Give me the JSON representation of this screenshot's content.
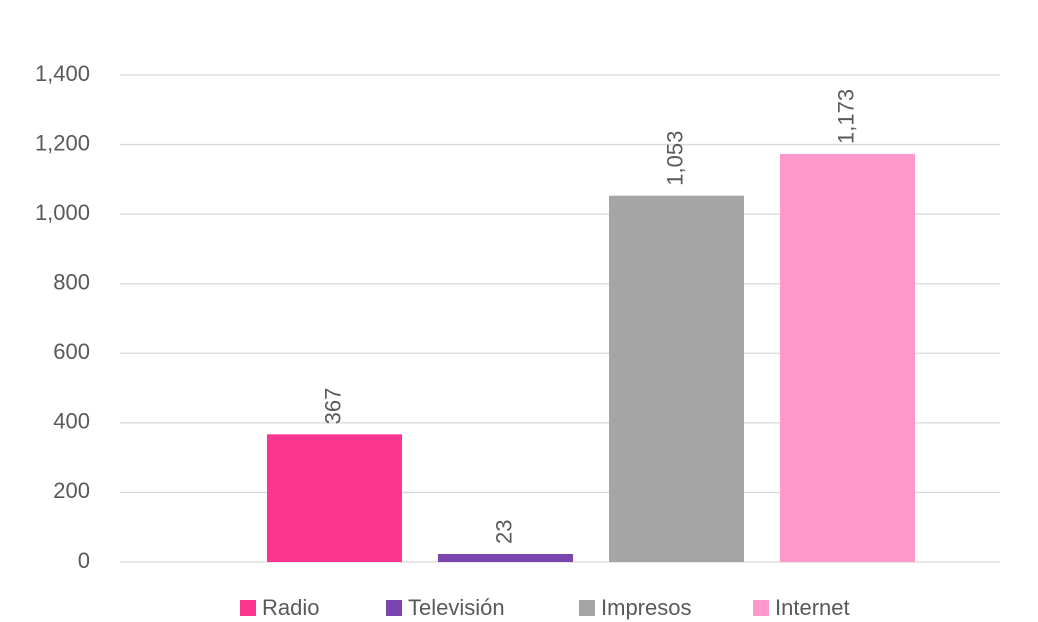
{
  "chart_data": {
    "type": "bar",
    "series": [
      {
        "name": "Radio",
        "color": "#fc3591",
        "values": [
          367
        ]
      },
      {
        "name": "Televisión",
        "color": "#7b45b0",
        "values": [
          23
        ]
      },
      {
        "name": "Impresos",
        "color": "#a5a5a5",
        "values": [
          1053
        ],
        "value_labels": [
          "1,053"
        ]
      },
      {
        "name": "Internet",
        "color": "#ff99cc",
        "values": [
          1173
        ],
        "value_labels": [
          "1,173"
        ]
      }
    ],
    "ylim": [
      0,
      1400
    ],
    "yticks": [
      0,
      200,
      400,
      600,
      800,
      {
        "value": 1000,
        "label": "1,000"
      },
      {
        "value": 1200,
        "label": "1,200"
      },
      {
        "value": 1400,
        "label": "1,400"
      }
    ],
    "grid": true,
    "legend": "bottom"
  }
}
